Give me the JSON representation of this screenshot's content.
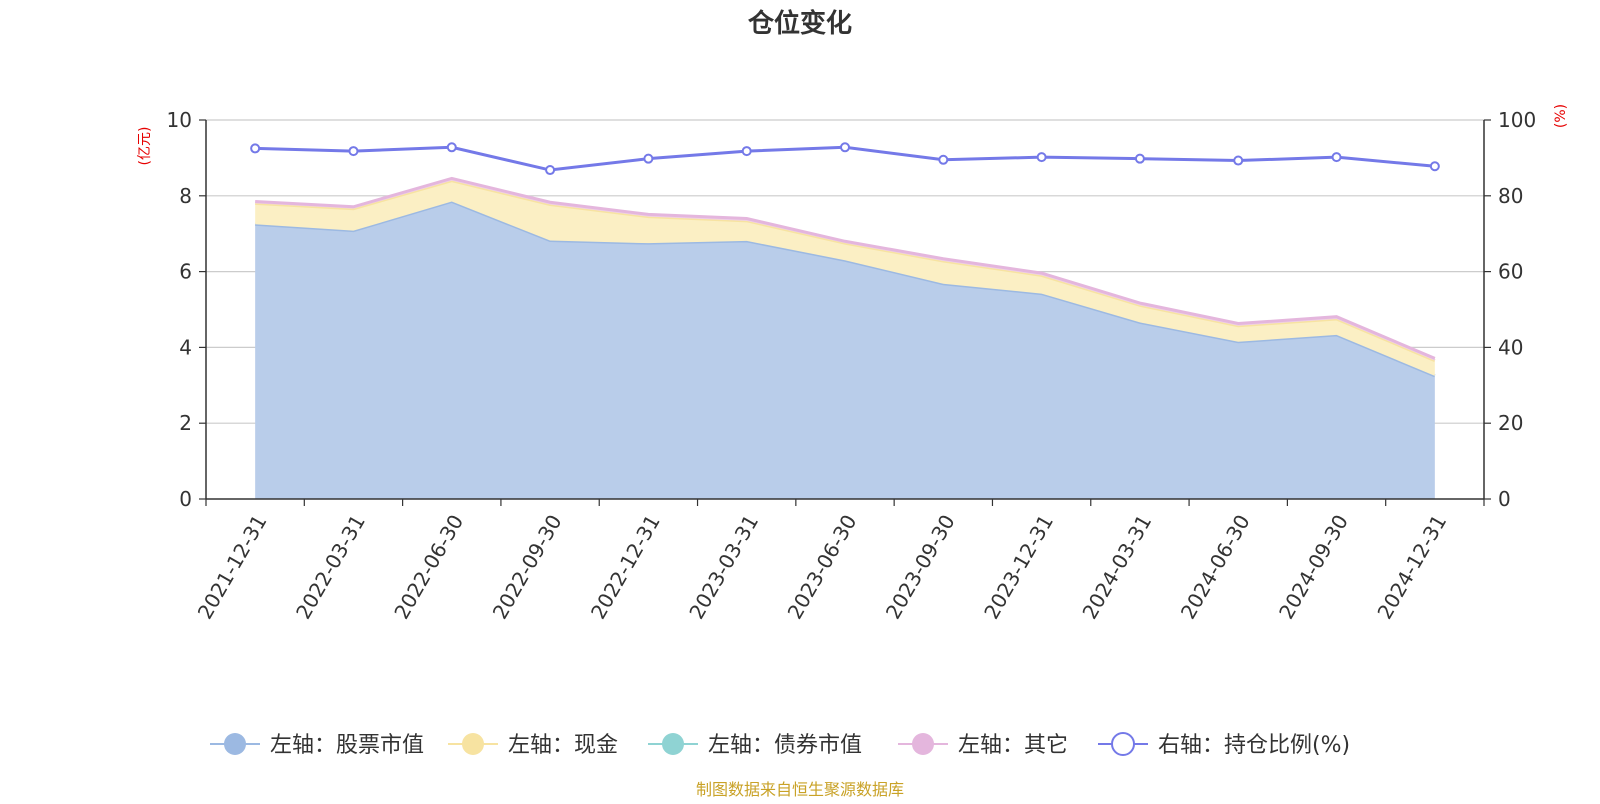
{
  "chart_data": {
    "type": "area",
    "title": "仓位变化",
    "left_axis_unit": "(亿元)",
    "right_axis_unit": "(%)",
    "ylim_left": [
      0,
      10
    ],
    "ylim_right": [
      0,
      100
    ],
    "yticks_left": [
      "0",
      "2",
      "4",
      "6",
      "8",
      "10"
    ],
    "yticks_right": [
      "0",
      "20",
      "40",
      "60",
      "80",
      "100"
    ],
    "categories": [
      "2021-12-31",
      "2022-03-31",
      "2022-06-30",
      "2022-09-30",
      "2022-12-31",
      "2023-03-31",
      "2023-06-30",
      "2023-09-30",
      "2023-12-31",
      "2024-03-31",
      "2024-06-30",
      "2024-09-30",
      "2024-12-31"
    ],
    "stacked_series": [
      {
        "name": "左轴：股票市值",
        "color": "#9cb9e2",
        "fill": "#b9cdea",
        "values": [
          7.25,
          7.08,
          7.85,
          6.82,
          6.75,
          6.81,
          6.3,
          5.68,
          5.42,
          4.66,
          4.15,
          4.33,
          3.25
        ]
      },
      {
        "name": "左轴：现金",
        "color": "#f7e3a1",
        "fill": "#fbefc4",
        "values": [
          0.55,
          0.58,
          0.55,
          0.95,
          0.7,
          0.53,
          0.45,
          0.6,
          0.48,
          0.45,
          0.42,
          0.42,
          0.4
        ]
      },
      {
        "name": "左轴：债券市值",
        "color": "#8fd3d3",
        "fill": "#b8e4e4",
        "values": [
          0,
          0,
          0,
          0,
          0,
          0,
          0,
          0,
          0,
          0,
          0,
          0,
          0
        ]
      },
      {
        "name": "左轴：其它",
        "color": "#e4b6dd",
        "fill": "#efd0ea",
        "values": [
          0.05,
          0.05,
          0.06,
          0.06,
          0.06,
          0.06,
          0.05,
          0.06,
          0.06,
          0.06,
          0.06,
          0.06,
          0.06
        ]
      }
    ],
    "line_series": {
      "name": "右轴：持仓比例(%)",
      "color": "#7479e8",
      "values": [
        92.5,
        91.8,
        92.8,
        86.8,
        89.8,
        91.8,
        92.8,
        89.5,
        90.2,
        89.8,
        89.3,
        90.2,
        87.8
      ]
    },
    "footer": "制图数据来自恒生聚源数据库"
  }
}
